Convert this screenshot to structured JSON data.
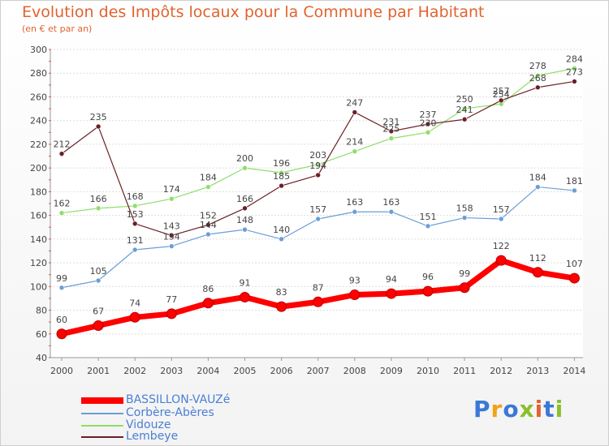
{
  "header": {
    "title": "Evolution des Impôts locaux pour la Commune par Habitant",
    "subtitle": "(en € et par an)"
  },
  "logo": {
    "text": "Proxiti",
    "colors": [
      "#3a78d6",
      "#f0a21a",
      "#3a78d6",
      "#8bbf2c",
      "#e2632f",
      "#3a78d6",
      "#8bbf2c"
    ]
  },
  "chart_data": {
    "type": "line",
    "title": "Evolution des Impôts locaux pour la Commune par Habitant",
    "subtitle": "(en € et par an)",
    "xlabel": "",
    "ylabel": "",
    "ylim": [
      40,
      300
    ],
    "ytick_step": 20,
    "grid": "horizontal",
    "legend": "bottom-left",
    "x": [
      "2000",
      "2001",
      "2002",
      "2003",
      "2004",
      "2005",
      "2006",
      "2007",
      "2008",
      "2009",
      "2010",
      "2011",
      "2012",
      "2013",
      "2014"
    ],
    "series": [
      {
        "name": "BASSILLON-VAUZé",
        "color": "#ff0000",
        "values": [
          60,
          67,
          74,
          77,
          86,
          91,
          83,
          87,
          93,
          94,
          96,
          99,
          122,
          112,
          107
        ]
      },
      {
        "name": "Corbère-Abères",
        "color": "#6a9ed6",
        "values": [
          99,
          105,
          131,
          134,
          144,
          148,
          140,
          157,
          163,
          163,
          151,
          158,
          157,
          184,
          181
        ]
      },
      {
        "name": "Vidouze",
        "color": "#90dd6a",
        "values": [
          162,
          166,
          168,
          174,
          184,
          200,
          196,
          203,
          214,
          225,
          230,
          250,
          254,
          278,
          284
        ]
      },
      {
        "name": "Lembeye",
        "color": "#6b1f26",
        "values": [
          212,
          235,
          153,
          143,
          152,
          166,
          185,
          194,
          247,
          231,
          237,
          241,
          257,
          268,
          273
        ]
      }
    ],
    "data_label_texts": {
      "BASSILLON-VAUZé": [
        "60",
        "67",
        "74",
        "77",
        "86",
        "91",
        "83",
        "87",
        "93",
        "94",
        "96",
        "99",
        "122",
        "112",
        "107"
      ],
      "Corbère-Abères": [
        "99",
        "105",
        "131",
        "134",
        "144",
        "148",
        "140",
        "157",
        "163",
        "163",
        "151",
        "158",
        "157",
        "184",
        "181"
      ],
      "Vidouze": [
        "162",
        "166",
        "168",
        "174",
        "184",
        "200",
        "196",
        "203",
        "214",
        "225",
        "230",
        "250",
        "254",
        "278",
        "284"
      ],
      "Lembeye": [
        "212",
        "235",
        "153",
        "143",
        "152",
        "166",
        "185",
        "194",
        "247",
        "231",
        "237",
        "241",
        "257",
        "268",
        "273"
      ]
    }
  }
}
